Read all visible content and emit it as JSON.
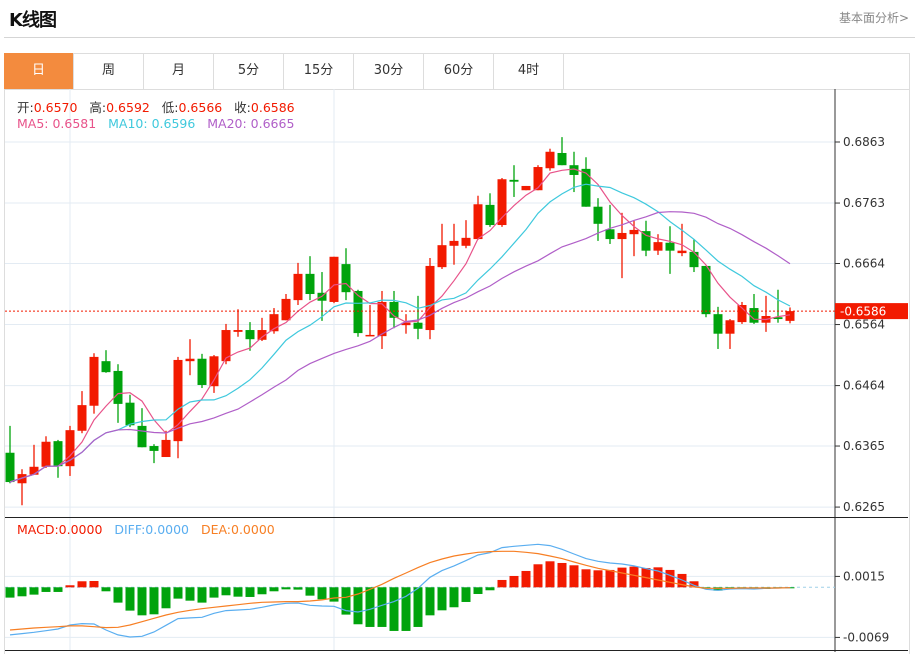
{
  "header": {
    "title": "K线图",
    "link": "基本面分析>"
  },
  "tabs": [
    {
      "label": "日",
      "active": true
    },
    {
      "label": "周"
    },
    {
      "label": "月"
    },
    {
      "label": "5分"
    },
    {
      "label": "15分"
    },
    {
      "label": "30分"
    },
    {
      "label": "60分"
    },
    {
      "label": "4时"
    }
  ],
  "ohlc_legend": {
    "open_label": "开:",
    "open": "0.6570",
    "high_label": "高:",
    "high": "0.6592",
    "low_label": "低:",
    "low": "0.6566",
    "close_label": "收:",
    "close": "0.6586"
  },
  "ma_legend": {
    "ma5": "MA5: 0.6581",
    "ma10": "MA10: 0.6596",
    "ma20": "MA20: 0.6665"
  },
  "macd_legend": {
    "macd": "MACD:0.0000",
    "diff": "DIFF:0.0000",
    "dea": "DEA:0.0000"
  },
  "current_price_label": "-0.6586",
  "colors": {
    "up": "#F21A00",
    "down": "#00A30C",
    "ma5": "#E8538A",
    "ma10": "#3FC9DD",
    "ma20": "#B05FC8",
    "diff": "#5AAEF0",
    "dea": "#F77F24",
    "accent": "#F38B3E"
  },
  "chart_data": {
    "type": "candlestick",
    "price_axis": {
      "ticks": [
        "0.6863",
        "0.6763",
        "0.6664",
        "0.6564",
        "0.6464",
        "0.6365",
        "0.6265"
      ],
      "range": [
        0.6265,
        0.6863
      ]
    },
    "current_price": 0.6586,
    "ohlc": [
      [
        0.6354,
        0.6398,
        0.6304,
        0.6306
      ],
      [
        0.6304,
        0.6327,
        0.6268,
        0.6319
      ],
      [
        0.6318,
        0.6367,
        0.6318,
        0.6331
      ],
      [
        0.6331,
        0.6381,
        0.6329,
        0.6372
      ],
      [
        0.6373,
        0.6375,
        0.6313,
        0.6332
      ],
      [
        0.6332,
        0.6398,
        0.6316,
        0.6391
      ],
      [
        0.639,
        0.6455,
        0.6386,
        0.6432
      ],
      [
        0.6431,
        0.6517,
        0.6418,
        0.6511
      ],
      [
        0.6504,
        0.6522,
        0.6485,
        0.6486
      ],
      [
        0.6488,
        0.6499,
        0.6403,
        0.6434
      ],
      [
        0.6436,
        0.6449,
        0.6396,
        0.6399
      ],
      [
        0.6398,
        0.6427,
        0.6363,
        0.6363
      ],
      [
        0.6365,
        0.6368,
        0.6337,
        0.6357
      ],
      [
        0.6347,
        0.639,
        0.6347,
        0.6375
      ],
      [
        0.6373,
        0.6511,
        0.6345,
        0.6506
      ],
      [
        0.6504,
        0.654,
        0.6481,
        0.6508
      ],
      [
        0.6508,
        0.6516,
        0.646,
        0.6465
      ],
      [
        0.6463,
        0.6514,
        0.6452,
        0.6512
      ],
      [
        0.6504,
        0.6565,
        0.6499,
        0.6555
      ],
      [
        0.6552,
        0.6589,
        0.6544,
        0.6555
      ],
      [
        0.6555,
        0.6568,
        0.6521,
        0.654
      ],
      [
        0.6539,
        0.6575,
        0.6537,
        0.6555
      ],
      [
        0.6553,
        0.6591,
        0.6549,
        0.6581
      ],
      [
        0.6571,
        0.6614,
        0.6571,
        0.6606
      ],
      [
        0.6604,
        0.6665,
        0.6596,
        0.6647
      ],
      [
        0.6647,
        0.6676,
        0.6604,
        0.6614
      ],
      [
        0.6616,
        0.665,
        0.657,
        0.6603
      ],
      [
        0.6601,
        0.6675,
        0.6599,
        0.6675
      ],
      [
        0.6663,
        0.6689,
        0.6604,
        0.6617
      ],
      [
        0.6619,
        0.6621,
        0.6544,
        0.655
      ],
      [
        0.6545,
        0.6596,
        0.6545,
        0.6547
      ],
      [
        0.6545,
        0.6619,
        0.6524,
        0.6601
      ],
      [
        0.6601,
        0.6619,
        0.6558,
        0.6575
      ],
      [
        0.6563,
        0.6581,
        0.6549,
        0.6567
      ],
      [
        0.6567,
        0.6611,
        0.654,
        0.6557
      ],
      [
        0.6555,
        0.6673,
        0.654,
        0.666
      ],
      [
        0.6658,
        0.6729,
        0.6655,
        0.6694
      ],
      [
        0.6693,
        0.6729,
        0.6662,
        0.6701
      ],
      [
        0.6693,
        0.6735,
        0.6689,
        0.6706
      ],
      [
        0.6704,
        0.6775,
        0.6703,
        0.6761
      ],
      [
        0.676,
        0.6779,
        0.6724,
        0.6727
      ],
      [
        0.6727,
        0.6804,
        0.6724,
        0.6802
      ],
      [
        0.6801,
        0.6825,
        0.6773,
        0.6798
      ],
      [
        0.6784,
        0.6791,
        0.6784,
        0.6791
      ],
      [
        0.6784,
        0.6825,
        0.6784,
        0.6822
      ],
      [
        0.682,
        0.6852,
        0.6816,
        0.6847
      ],
      [
        0.6845,
        0.6871,
        0.6825,
        0.6825
      ],
      [
        0.6825,
        0.6847,
        0.6781,
        0.6809
      ],
      [
        0.6819,
        0.6838,
        0.6757,
        0.6757
      ],
      [
        0.6757,
        0.6771,
        0.6701,
        0.6729
      ],
      [
        0.672,
        0.676,
        0.6696,
        0.6704
      ],
      [
        0.6704,
        0.6747,
        0.664,
        0.6714
      ],
      [
        0.6712,
        0.6734,
        0.6676,
        0.6719
      ],
      [
        0.6717,
        0.6734,
        0.6676,
        0.6685
      ],
      [
        0.6685,
        0.6712,
        0.6678,
        0.6699
      ],
      [
        0.6698,
        0.6725,
        0.6647,
        0.6685
      ],
      [
        0.6681,
        0.6729,
        0.6676,
        0.6685
      ],
      [
        0.6683,
        0.6704,
        0.665,
        0.6658
      ],
      [
        0.666,
        0.666,
        0.6576,
        0.6581
      ],
      [
        0.6581,
        0.6593,
        0.6524,
        0.6549
      ],
      [
        0.6549,
        0.6573,
        0.6524,
        0.6571
      ],
      [
        0.6568,
        0.6601,
        0.6565,
        0.6596
      ],
      [
        0.6591,
        0.6614,
        0.6565,
        0.6567
      ],
      [
        0.6567,
        0.6611,
        0.6552,
        0.6578
      ],
      [
        0.6576,
        0.6621,
        0.6567,
        0.6573
      ],
      [
        0.657,
        0.6592,
        0.6566,
        0.6586
      ]
    ],
    "macd_axis": {
      "ticks": [
        "0.0015",
        "-0.0069"
      ],
      "range": [
        -0.0069,
        0.0015
      ]
    },
    "macd_hist": [
      -0.00142,
      -0.00124,
      -0.00101,
      -0.00064,
      -0.00064,
      0.00028,
      0.00083,
      0.00087,
      -0.00055,
      -0.00211,
      -0.00321,
      -0.00386,
      -0.00372,
      -0.00289,
      -0.00156,
      -0.00184,
      -0.00211,
      -0.00142,
      -0.0011,
      -0.00129,
      -0.00133,
      -0.00096,
      -0.00055,
      -0.00028,
      -0.00032,
      -0.00115,
      -0.00165,
      -0.00197,
      -0.00376,
      -0.00509,
      -0.00546,
      -0.00546,
      -0.00601,
      -0.00601,
      -0.00546,
      -0.00386,
      -0.00317,
      -0.00275,
      -0.00202,
      -0.00092,
      -0.00041,
      0.00101,
      0.00156,
      0.00225,
      0.00317,
      0.00358,
      0.00335,
      0.00303,
      0.00248,
      0.00234,
      0.00239,
      0.00271,
      0.00285,
      0.00266,
      0.00275,
      0.00239,
      0.00184,
      0.00083,
      -0.00018,
      -0.00046,
      -0.00014,
      -5e-05,
      -9e-05,
      -0.00023,
      -9e-05,
      -5e-05
    ],
    "diff": [
      -0.00656,
      -0.00638,
      -0.0062,
      -0.00597,
      -0.00574,
      -0.00519,
      -0.005,
      -0.00505,
      -0.00588,
      -0.00656,
      -0.00684,
      -0.00675,
      -0.00615,
      -0.00523,
      -0.00431,
      -0.00422,
      -0.00413,
      -0.00358,
      -0.00321,
      -0.00312,
      -0.00303,
      -0.00275,
      -0.00243,
      -0.0022,
      -0.00216,
      -0.00248,
      -0.00257,
      -0.00262,
      -0.00321,
      -0.0034,
      -0.00303,
      -0.00248,
      -0.00197,
      -0.00124,
      -0.00014,
      0.00138,
      0.0023,
      0.00294,
      0.00367,
      0.00445,
      0.00477,
      0.00546,
      0.00565,
      0.00578,
      0.00592,
      0.00574,
      0.00523,
      0.00459,
      0.00395,
      0.00358,
      0.00335,
      0.00321,
      0.00294,
      0.00257,
      0.00225,
      0.00165,
      0.00101,
      0.00028,
      -0.00028,
      -0.00041,
      -0.00023,
      -0.00018,
      -0.00023,
      -0.00014,
      -9e-05,
      -5e-05
    ],
    "dea": [
      -0.00588,
      -0.00574,
      -0.0056,
      -0.00551,
      -0.00542,
      -0.00532,
      -0.00532,
      -0.00542,
      -0.00555,
      -0.00551,
      -0.00519,
      -0.00473,
      -0.00427,
      -0.00381,
      -0.00344,
      -0.00317,
      -0.00294,
      -0.00275,
      -0.00257,
      -0.00239,
      -0.0022,
      -0.00207,
      -0.00202,
      -0.00197,
      -0.00197,
      -0.00188,
      -0.00174,
      -0.00147,
      -0.00138,
      -0.00092,
      -0.00028,
      0.00041,
      0.00124,
      0.00197,
      0.00271,
      0.0034,
      0.0039,
      0.00431,
      0.00459,
      0.00482,
      0.00491,
      0.00496,
      0.00496,
      0.00482,
      0.00464,
      0.00431,
      0.00395,
      0.00349,
      0.00303,
      0.00262,
      0.0023,
      0.00197,
      0.00165,
      0.00133,
      0.00101,
      0.00069,
      0.00037,
      5e-05,
      -0.00014,
      -0.00014,
      -0.00014,
      -9e-05,
      -9e-05,
      -9e-05,
      -9e-05,
      -5e-05
    ]
  }
}
